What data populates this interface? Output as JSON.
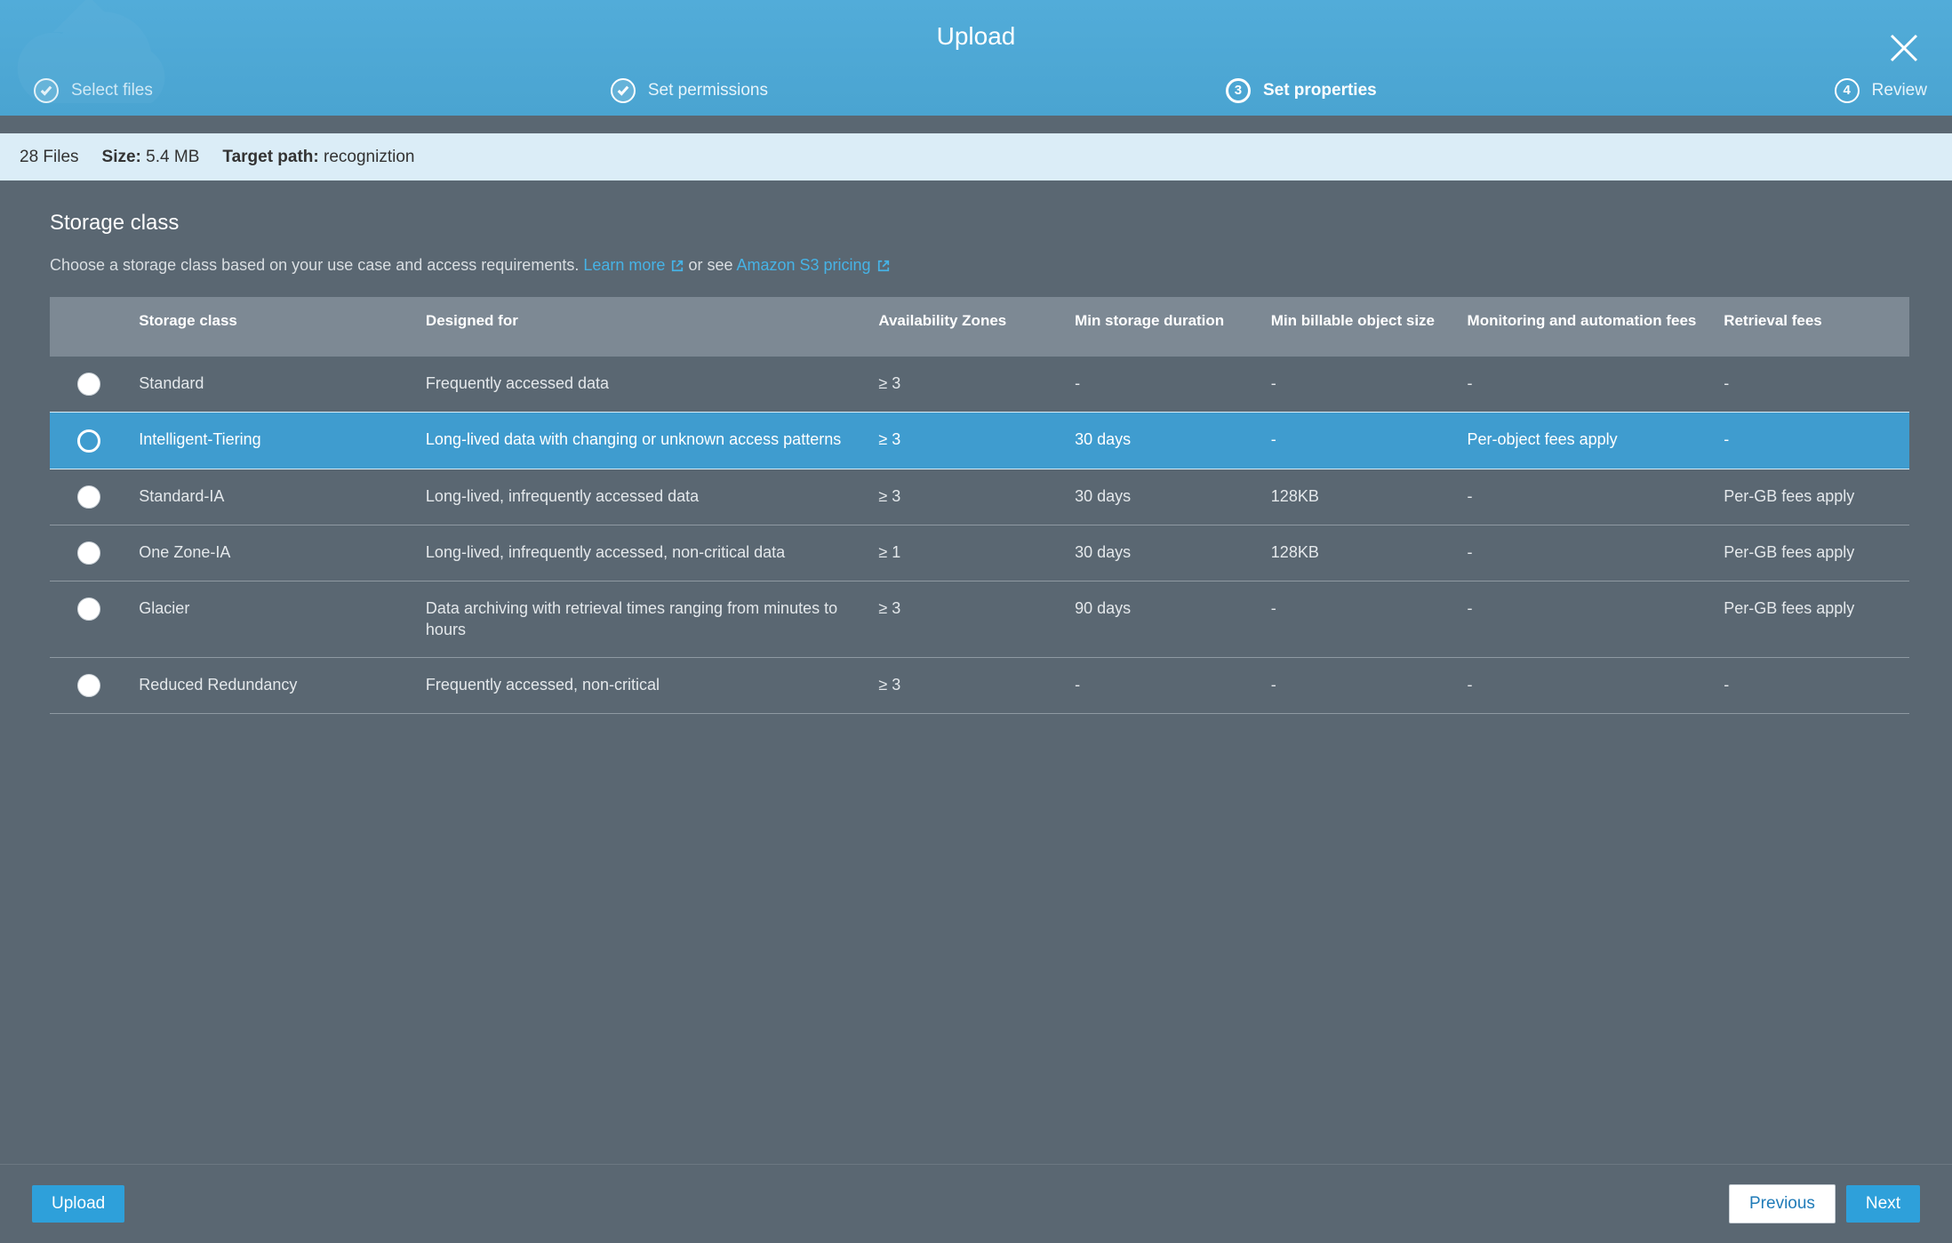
{
  "header": {
    "title": "Upload",
    "close_icon": "close"
  },
  "steps": [
    {
      "label": "Select files",
      "state": "done",
      "number": null
    },
    {
      "label": "Set permissions",
      "state": "done",
      "number": null
    },
    {
      "label": "Set properties",
      "state": "active",
      "number": "3"
    },
    {
      "label": "Review",
      "state": "todo",
      "number": "4"
    }
  ],
  "info_bar": {
    "file_count_prefix": "",
    "file_count": "28 Files",
    "size_label": "Size:",
    "size_value": "5.4 MB",
    "target_label": "Target path:",
    "target_value": "recogniztion"
  },
  "storage": {
    "title": "Storage class",
    "desc_prefix": "Choose a storage class based on your use case and access requirements. ",
    "learn_more": "Learn more",
    "or_see": " or see ",
    "pricing_link": "Amazon S3 pricing",
    "columns": [
      "",
      "Storage class",
      "Designed for",
      "Availability Zones",
      "Min storage duration",
      "Min billable object size",
      "Monitoring and automation fees",
      "Retrieval fees"
    ],
    "col_widths": [
      "52px",
      "190px",
      "300px",
      "130px",
      "130px",
      "130px",
      "170px",
      "130px"
    ],
    "rows": [
      {
        "selected": false,
        "name": "Standard",
        "designed": "Frequently accessed data",
        "az": "≥ 3",
        "min_dur": "-",
        "min_obj": "-",
        "mon": "-",
        "ret": "-"
      },
      {
        "selected": true,
        "name": "Intelligent-Tiering",
        "designed": "Long-lived data with changing or unknown access patterns",
        "az": "≥ 3",
        "min_dur": "30 days",
        "min_obj": "-",
        "mon": "Per-object fees apply",
        "ret": "-"
      },
      {
        "selected": false,
        "name": "Standard-IA",
        "designed": "Long-lived, infrequently accessed data",
        "az": "≥ 3",
        "min_dur": "30 days",
        "min_obj": "128KB",
        "mon": "-",
        "ret": "Per-GB fees apply"
      },
      {
        "selected": false,
        "name": "One Zone-IA",
        "designed": "Long-lived, infrequently accessed, non-critical data",
        "az": "≥ 1",
        "min_dur": "30 days",
        "min_obj": "128KB",
        "mon": "-",
        "ret": "Per-GB fees apply"
      },
      {
        "selected": false,
        "name": "Glacier",
        "designed": "Data archiving with retrieval times ranging from minutes to hours",
        "az": "≥ 3",
        "min_dur": "90 days",
        "min_obj": "-",
        "mon": "-",
        "ret": "Per-GB fees apply"
      },
      {
        "selected": false,
        "name": "Reduced Redundancy",
        "designed": "Frequently accessed, non-critical",
        "az": "≥ 3",
        "min_dur": "-",
        "min_obj": "-",
        "mon": "-",
        "ret": "-"
      }
    ]
  },
  "footer": {
    "upload": "Upload",
    "previous": "Previous",
    "next": "Next"
  },
  "colors": {
    "header_bg": "#4ea9d6",
    "body_bg": "#5a6772",
    "info_bg": "#dbedf7",
    "table_header_bg": "#7d8994",
    "row_selected_bg": "#3f9ccf",
    "btn_primary_bg": "#2ea0da",
    "link": "#46b3e6"
  }
}
